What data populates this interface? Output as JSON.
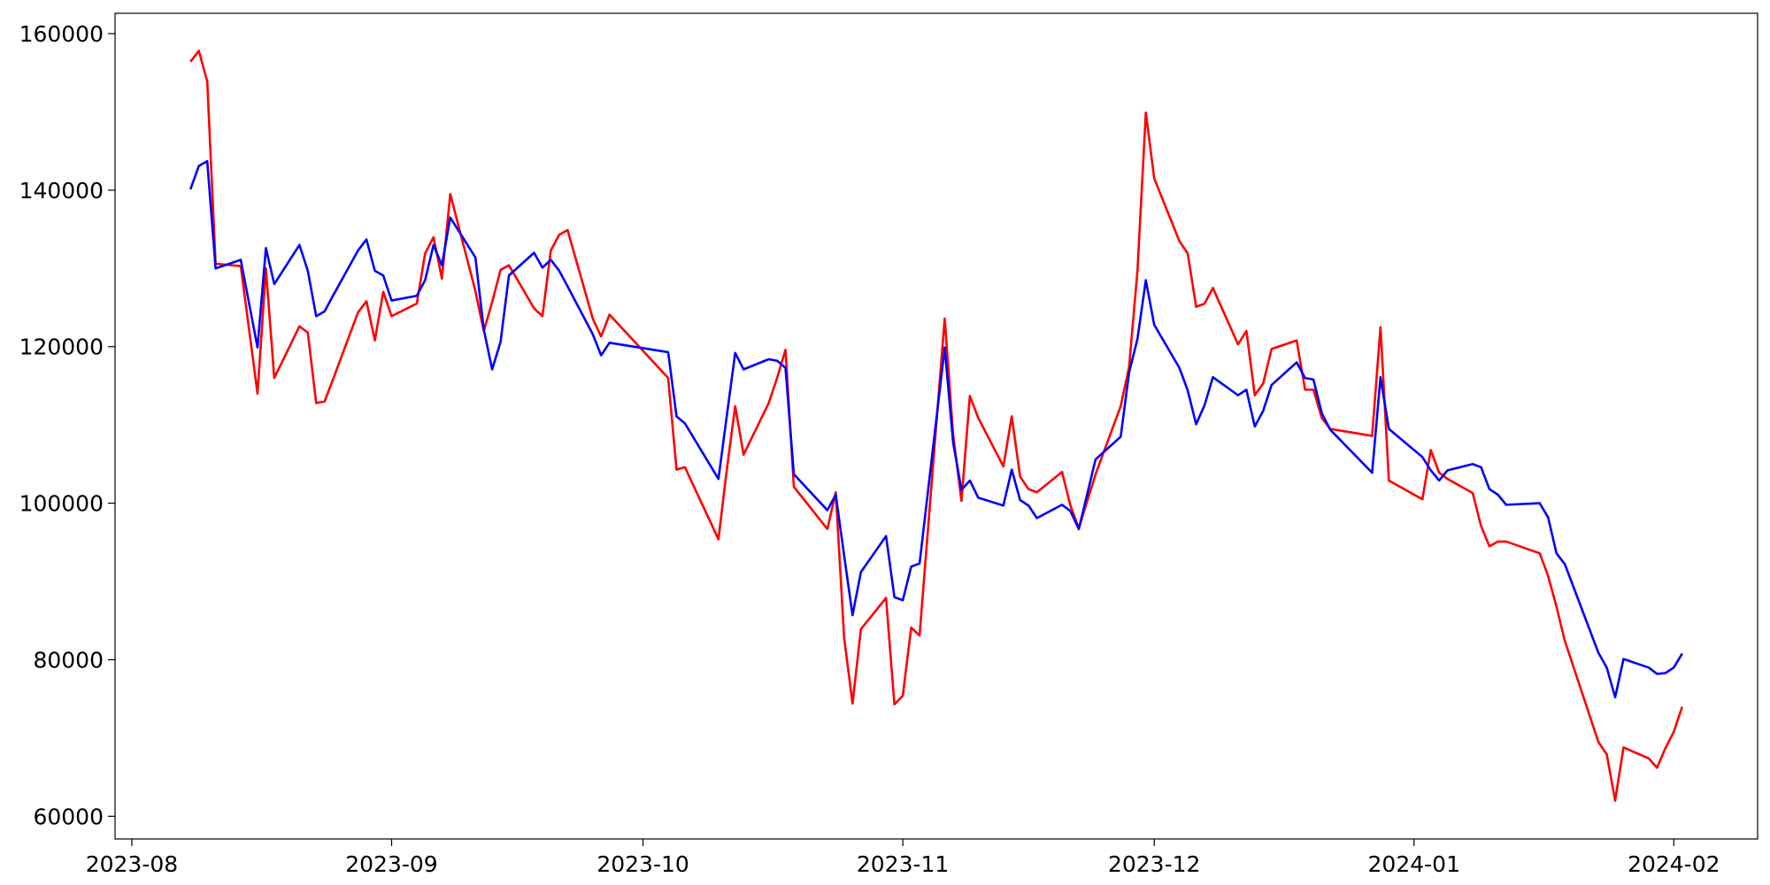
{
  "chart_data": {
    "type": "line",
    "x": [
      "2023-08-08",
      "2023-08-09",
      "2023-08-10",
      "2023-08-11",
      "2023-08-14",
      "2023-08-16",
      "2023-08-17",
      "2023-08-18",
      "2023-08-21",
      "2023-08-22",
      "2023-08-23",
      "2023-08-24",
      "2023-08-25",
      "2023-08-28",
      "2023-08-29",
      "2023-08-30",
      "2023-08-31",
      "2023-09-01",
      "2023-09-04",
      "2023-09-05",
      "2023-09-06",
      "2023-09-07",
      "2023-09-08",
      "2023-09-11",
      "2023-09-12",
      "2023-09-13",
      "2023-09-14",
      "2023-09-15",
      "2023-09-18",
      "2023-09-19",
      "2023-09-20",
      "2023-09-21",
      "2023-09-22",
      "2023-09-25",
      "2023-09-26",
      "2023-09-27",
      "2023-10-04",
      "2023-10-05",
      "2023-10-06",
      "2023-10-10",
      "2023-10-11",
      "2023-10-12",
      "2023-10-13",
      "2023-10-16",
      "2023-10-17",
      "2023-10-18",
      "2023-10-19",
      "2023-10-23",
      "2023-10-24",
      "2023-10-25",
      "2023-10-26",
      "2023-10-27",
      "2023-10-30",
      "2023-10-31",
      "2023-11-01",
      "2023-11-02",
      "2023-11-03",
      "2023-11-06",
      "2023-11-07",
      "2023-11-08",
      "2023-11-09",
      "2023-11-10",
      "2023-11-13",
      "2023-11-14",
      "2023-11-15",
      "2023-11-16",
      "2023-11-17",
      "2023-11-20",
      "2023-11-21",
      "2023-11-22",
      "2023-11-24",
      "2023-11-27",
      "2023-11-28",
      "2023-11-29",
      "2023-11-30",
      "2023-12-01",
      "2023-12-04",
      "2023-12-05",
      "2023-12-06",
      "2023-12-07",
      "2023-12-08",
      "2023-12-11",
      "2023-12-12",
      "2023-12-13",
      "2023-12-14",
      "2023-12-15",
      "2023-12-18",
      "2023-12-19",
      "2023-12-20",
      "2023-12-21",
      "2023-12-22",
      "2023-12-27",
      "2023-12-28",
      "2023-12-29",
      "2024-01-02",
      "2024-01-03",
      "2024-01-04",
      "2024-01-05",
      "2024-01-08",
      "2024-01-09",
      "2024-01-10",
      "2024-01-11",
      "2024-01-12",
      "2024-01-16",
      "2024-01-17",
      "2024-01-18",
      "2024-01-19",
      "2024-01-23",
      "2024-01-24",
      "2024-01-25",
      "2024-01-26",
      "2024-01-29",
      "2024-01-30",
      "2024-01-31",
      "2024-02-01",
      "2024-02-02"
    ],
    "series": [
      {
        "color": "#ff0000",
        "values": [
          156400,
          157800,
          153900,
          130600,
          130300,
          114000,
          130000,
          116000,
          122600,
          121800,
          112800,
          113000,
          115800,
          124400,
          125800,
          120800,
          127000,
          123900,
          125500,
          131900,
          134000,
          128700,
          139500,
          127100,
          122000,
          125700,
          129800,
          130400,
          124900,
          123900,
          132300,
          134300,
          134900,
          123600,
          121300,
          124100,
          116000,
          104300,
          104600,
          95400,
          104300,
          112400,
          106200,
          112800,
          116000,
          119600,
          102100,
          96700,
          101400,
          82800,
          74400,
          83900,
          87900,
          74300,
          75400,
          84100,
          83100,
          123600,
          108800,
          100300,
          113700,
          110900,
          104700,
          111100,
          103400,
          101800,
          101400,
          104000,
          99700,
          96800,
          103700,
          112400,
          117400,
          129700,
          149900,
          141500,
          133500,
          131900,
          125100,
          125500,
          127500,
          120300,
          122000,
          113800,
          115300,
          119700,
          120800,
          114500,
          114500,
          110900,
          109500,
          108600,
          122500,
          102900,
          100500,
          106800,
          103900,
          103100,
          101300,
          97100,
          94500,
          95100,
          95100,
          93600,
          90700,
          86800,
          82400,
          69500,
          67900,
          62000,
          68800,
          67400,
          66200,
          68700,
          70800,
          74000
        ]
      },
      {
        "color": "#0000ff",
        "values": [
          140100,
          143100,
          143700,
          130000,
          131100,
          119900,
          132600,
          128000,
          133000,
          129700,
          123900,
          124500,
          126500,
          132300,
          133700,
          129700,
          129100,
          125900,
          126500,
          128500,
          133000,
          130400,
          136500,
          131400,
          122200,
          117100,
          120600,
          129100,
          132000,
          130100,
          131100,
          129700,
          127700,
          121600,
          118900,
          120500,
          119300,
          111100,
          110200,
          103100,
          111200,
          119200,
          117100,
          118400,
          118200,
          117300,
          103700,
          99100,
          101100,
          93300,
          85700,
          91200,
          95800,
          88000,
          87600,
          91900,
          92300,
          119900,
          107800,
          101700,
          102900,
          100700,
          99700,
          104300,
          100400,
          99700,
          98100,
          99800,
          99000,
          96700,
          105600,
          108500,
          116700,
          121000,
          128500,
          122800,
          117300,
          114400,
          110100,
          112500,
          116100,
          113800,
          114500,
          109800,
          111800,
          115100,
          118000,
          116000,
          115800,
          111500,
          109400,
          103900,
          116100,
          109500,
          105900,
          104200,
          102900,
          104200,
          105000,
          104600,
          101800,
          101100,
          99800,
          100000,
          98200,
          93600,
          92200,
          80900,
          79000,
          75200,
          80100,
          79000,
          78200,
          78300,
          79000,
          80800
        ]
      }
    ],
    "xlim": [
      "2023-07-30",
      "2024-02-11"
    ],
    "xticks": [
      {
        "value": "2023-08-01",
        "label": "2023-08"
      },
      {
        "value": "2023-09-01",
        "label": "2023-09"
      },
      {
        "value": "2023-10-01",
        "label": "2023-10"
      },
      {
        "value": "2023-11-01",
        "label": "2023-11"
      },
      {
        "value": "2023-12-01",
        "label": "2023-12"
      },
      {
        "value": "2024-01-01",
        "label": "2024-01"
      },
      {
        "value": "2024-02-01",
        "label": "2024-02"
      }
    ],
    "ylim": [
      57100,
      162600
    ],
    "yticks": [
      60000,
      80000,
      100000,
      120000,
      140000,
      160000
    ],
    "grid": false
  }
}
